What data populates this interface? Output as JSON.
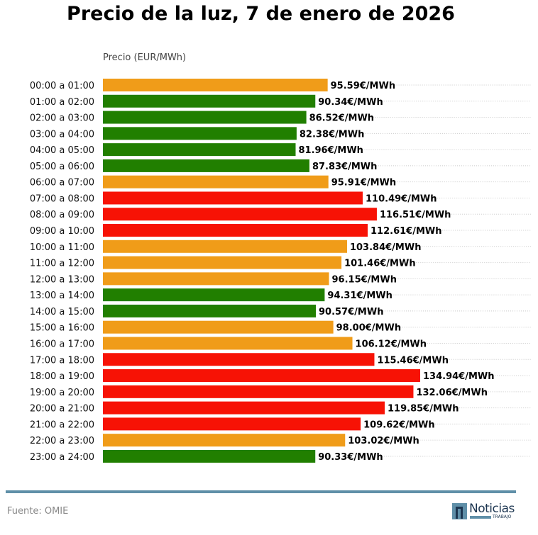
{
  "header": {
    "title": "Precio de la luz, 7 de enero de 2026"
  },
  "footer": {
    "source": "Fuente: OMIE",
    "logo_word": "Noticias",
    "logo_sub": "TRABAJO"
  },
  "colors": {
    "low": "#217f00",
    "mid": "#f09c19",
    "high": "#f71205",
    "footer_line": "#5f8fa8"
  },
  "chart_data": {
    "type": "bar",
    "orientation": "horizontal",
    "title": "Precio de la luz, 7 de enero de 2026",
    "xlabel": "Precio (EUR/MWh)",
    "ylabel": "",
    "xlim": [
      0,
      182
    ],
    "grid": "dotted horizontal lines from label to right edge",
    "value_suffix": "€/MWh",
    "categories": [
      "00:00 a 01:00",
      "01:00 a 02:00",
      "02:00 a 03:00",
      "03:00 a 04:00",
      "04:00 a 05:00",
      "05:00 a 06:00",
      "06:00 a 07:00",
      "07:00 a 08:00",
      "08:00 a 09:00",
      "09:00 a 10:00",
      "10:00 a 11:00",
      "11:00 a 12:00",
      "12:00 a 13:00",
      "13:00 a 14:00",
      "14:00 a 15:00",
      "15:00 a 16:00",
      "16:00 a 17:00",
      "17:00 a 18:00",
      "18:00 a 19:00",
      "19:00 a 20:00",
      "20:00 a 21:00",
      "21:00 a 22:00",
      "22:00 a 23:00",
      "23:00 a 24:00"
    ],
    "values": [
      95.59,
      90.34,
      86.52,
      82.38,
      81.96,
      87.83,
      95.91,
      110.49,
      116.51,
      112.61,
      103.84,
      101.46,
      96.15,
      94.31,
      90.57,
      98.0,
      106.12,
      115.46,
      134.94,
      132.06,
      119.85,
      109.62,
      103.02,
      90.33
    ],
    "labels": [
      "95.59€/MWh",
      "90.34€/MWh",
      "86.52€/MWh",
      "82.38€/MWh",
      "81.96€/MWh",
      "87.83€/MWh",
      "95.91€/MWh",
      "110.49€/MWh",
      "116.51€/MWh",
      "112.61€/MWh",
      "103.84€/MWh",
      "101.46€/MWh",
      "96.15€/MWh",
      "94.31€/MWh",
      "90.57€/MWh",
      "98.00€/MWh",
      "106.12€/MWh",
      "115.46€/MWh",
      "134.94€/MWh",
      "132.06€/MWh",
      "119.85€/MWh",
      "109.62€/MWh",
      "103.02€/MWh",
      "90.33€/MWh"
    ],
    "levels": [
      "mid",
      "low",
      "low",
      "low",
      "low",
      "low",
      "mid",
      "high",
      "high",
      "high",
      "mid",
      "mid",
      "mid",
      "low",
      "low",
      "mid",
      "mid",
      "high",
      "high",
      "high",
      "high",
      "high",
      "mid",
      "low"
    ]
  }
}
